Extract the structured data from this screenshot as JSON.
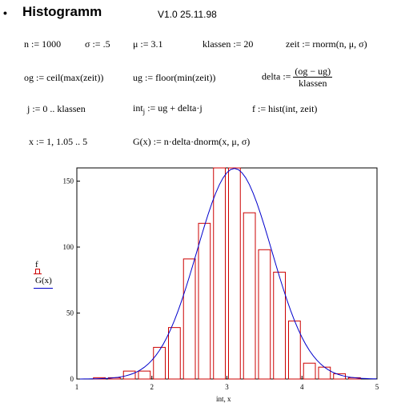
{
  "header": {
    "bullet": "•",
    "title": "Histogramm",
    "version": "V1.0   25.11.98"
  },
  "worksheet": {
    "n": "n := 1000",
    "sigma": "σ := .5",
    "mu": "μ := 3.1",
    "klassen": "klassen := 20",
    "zeit": "zeit := rnorm(n, μ, σ)",
    "og": "og := ceil(max(zeit))",
    "ug": "ug := floor(min(zeit))",
    "delta_lhs": "delta :=",
    "delta_num": "(og − ug)",
    "delta_den": "klassen",
    "j": "j := 0 .. klassen",
    "int_lhs": "int",
    "int_sub": "j",
    "int_rhs": " := ug + delta·j",
    "f": "f := hist(int, zeit)",
    "x": "x := 1, 1.05 .. 5",
    "G": "G(x) := n·delta·dnorm(x, μ, σ)"
  },
  "plot": {
    "y_label_1": "f",
    "y_label_2": "G(x)",
    "x_label": "int, x"
  },
  "chart_data": {
    "type": "bar",
    "xlim": [
      1,
      5
    ],
    "ylim": [
      0,
      160
    ],
    "x_ticks": [
      1,
      2,
      3,
      4,
      5
    ],
    "y_ticks": [
      0,
      50,
      100,
      150
    ],
    "bar_width": 0.2,
    "bar_left_edges": [
      1.0,
      1.2,
      1.4,
      1.6,
      1.8,
      2.0,
      2.2,
      2.4,
      2.6,
      2.8,
      3.0,
      3.2,
      3.4,
      3.6,
      3.8,
      4.0,
      4.2,
      4.4,
      4.6,
      4.8
    ],
    "bar_values": [
      0,
      1,
      1,
      6,
      6,
      24,
      39,
      91,
      118,
      160,
      160,
      126,
      98,
      81,
      44,
      12,
      9,
      4,
      1,
      0
    ],
    "series": [
      {
        "name": "f",
        "kind": "histogram",
        "color": "#cc0000"
      },
      {
        "name": "G(x)",
        "kind": "curve",
        "color": "#0000cc",
        "n": 1000,
        "delta": 0.2,
        "mu": 3.1,
        "sigma": 0.5,
        "x_range": [
          1,
          5
        ],
        "x_step": 0.05
      }
    ],
    "xlabel": "int, x",
    "ylabel": "f / G(x)",
    "grid": false
  }
}
